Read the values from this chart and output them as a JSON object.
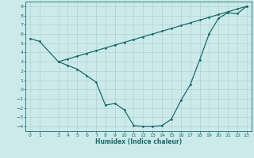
{
  "line1_x": [
    0,
    1,
    3,
    4,
    5,
    6,
    7,
    8,
    9,
    10,
    11,
    12,
    13,
    14,
    15,
    16,
    17,
    18,
    19,
    20,
    21,
    22,
    23
  ],
  "line1_y": [
    5.5,
    5.2,
    3.0,
    2.6,
    2.2,
    1.5,
    0.8,
    -1.7,
    -1.5,
    -2.2,
    -3.9,
    -4.0,
    -4.0,
    -3.9,
    -3.2,
    -1.2,
    0.5,
    3.2,
    6.0,
    7.7,
    8.3,
    8.2,
    9.0
  ],
  "line2_x": [
    3,
    4,
    5,
    6,
    7,
    8,
    9,
    10,
    11,
    12,
    13,
    14,
    15,
    16,
    17,
    18,
    19,
    20,
    21,
    22,
    23
  ],
  "line2_y": [
    3.0,
    3.3,
    3.6,
    3.9,
    4.2,
    4.5,
    4.8,
    5.1,
    5.4,
    5.7,
    6.0,
    6.3,
    6.6,
    6.9,
    7.2,
    7.5,
    7.8,
    8.1,
    8.4,
    8.7,
    9.0
  ],
  "line_color": "#1a6b6b",
  "bg_color": "#cceaea",
  "grid_color": "#aacccc",
  "xlabel": "Humidex (Indice chaleur)",
  "ylim": [
    -4.5,
    9.5
  ],
  "xlim": [
    -0.5,
    23.5
  ],
  "yticks": [
    -4,
    -3,
    -2,
    -1,
    0,
    1,
    2,
    3,
    4,
    5,
    6,
    7,
    8,
    9
  ],
  "xticks": [
    0,
    1,
    3,
    4,
    5,
    6,
    7,
    8,
    9,
    10,
    11,
    12,
    13,
    14,
    15,
    16,
    17,
    18,
    19,
    20,
    21,
    22,
    23
  ],
  "tick_fontsize": 4.5,
  "xlabel_fontsize": 5.5,
  "line_width": 0.9,
  "marker_size": 2.0
}
